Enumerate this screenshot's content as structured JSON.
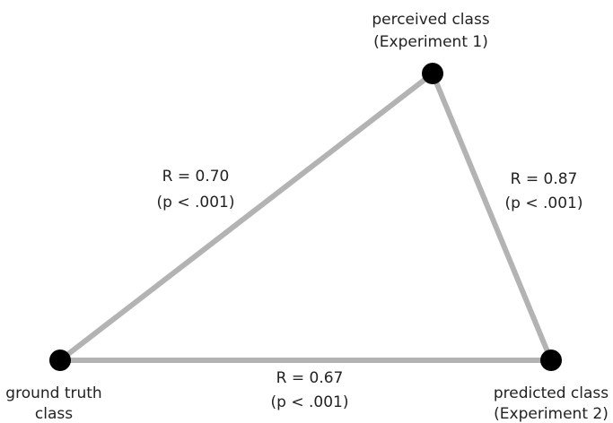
{
  "nodes": [
    {
      "label": [
        "perceived class",
        "(Experiment 1)"
      ]
    },
    {
      "label": [
        "ground truth",
        "class"
      ]
    },
    {
      "label": [
        "predicted class",
        "(Experiment 2)"
      ]
    }
  ],
  "edges": [
    {
      "label": [
        "R = 0.70",
        "(p < .001)"
      ]
    },
    {
      "label": [
        "R = 0.87",
        "(p < .001)"
      ]
    },
    {
      "label": [
        "R = 0.67",
        "(p < .001)"
      ]
    }
  ]
}
